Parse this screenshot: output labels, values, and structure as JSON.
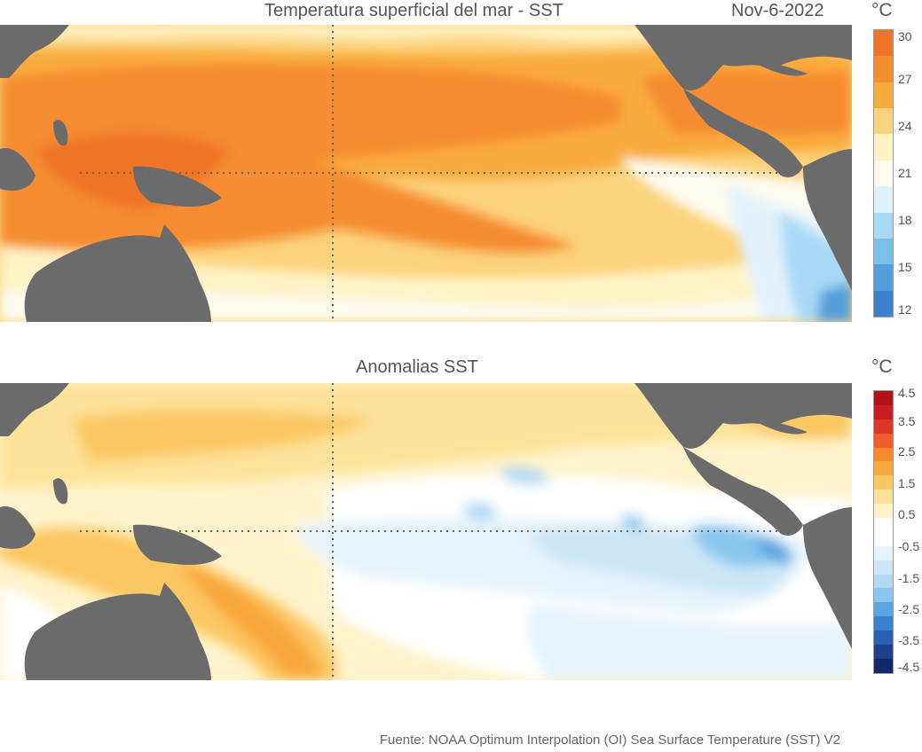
{
  "sst_panel": {
    "title": "Temperatura superficial del mar - SST",
    "date": "Nov-6-2022",
    "unit": "°C",
    "colorbar": {
      "ticks": [
        "30",
        "27",
        "24",
        "21",
        "18",
        "15",
        "12"
      ],
      "colors": [
        "#f07428",
        "#f68d30",
        "#f9ab3e",
        "#fcd27c",
        "#fff3c6",
        "#fdfbf0",
        "#e1f1fb",
        "#a9d9f5",
        "#78bfea",
        "#529fdc",
        "#3d83cc"
      ]
    }
  },
  "anomaly_panel": {
    "title": "Anomalias SST",
    "unit": "°C",
    "colorbar": {
      "ticks": [
        "4.5",
        "3.5",
        "2.5",
        "1.5",
        "0.5",
        "-0.5",
        "-1.5",
        "-2.5",
        "-3.5",
        "-4.5"
      ],
      "colors": [
        "#b3121b",
        "#c91d22",
        "#de3726",
        "#ef5d28",
        "#f6892d",
        "#f9a83c",
        "#fcc863",
        "#fde39a",
        "#fff3cc",
        "#ffffff",
        "#ffffff",
        "#e6f3fb",
        "#cde7f7",
        "#b1d9f3",
        "#8ac6ee",
        "#5aa6e0",
        "#3a82cc",
        "#2b5fb0",
        "#1f3f8c",
        "#13286b"
      ]
    }
  },
  "footer": {
    "source": "Fuente: NOAA Optimum Interpolation (OI) Sea Surface Temperature (SST) V2"
  }
}
